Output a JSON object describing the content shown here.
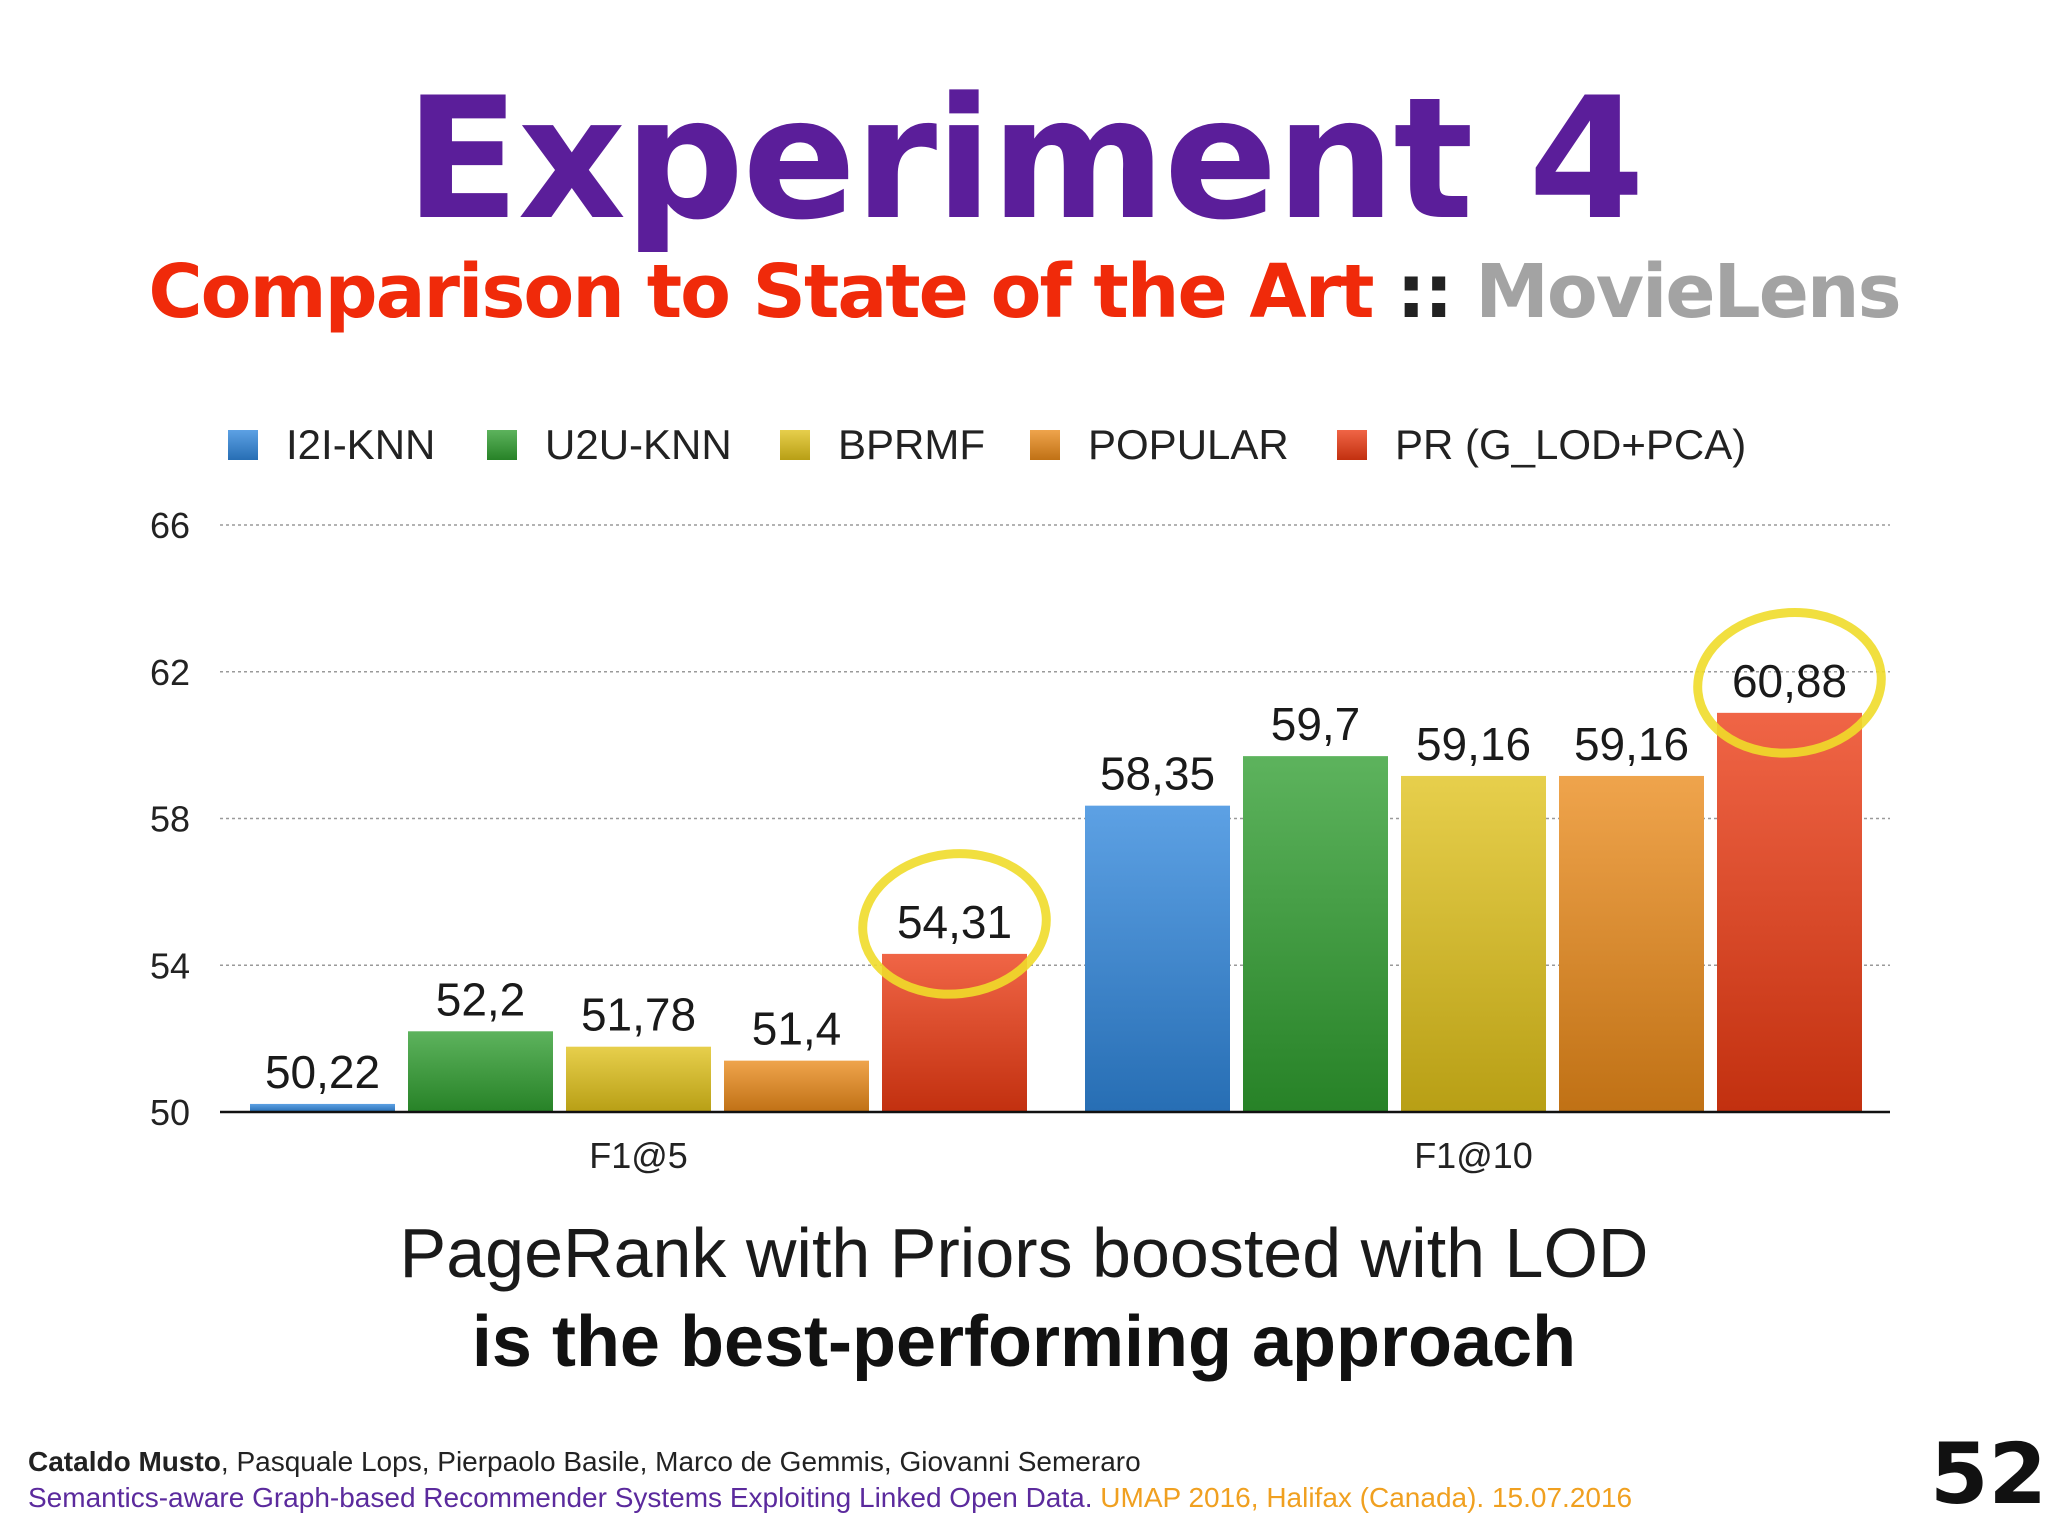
{
  "slide": {
    "title": "Experiment 4",
    "subtitle_main": "Comparison to State of the Art",
    "subtitle_sep": "::",
    "subtitle_dataset": "MovieLens",
    "conclusion_line1": "PageRank with Priors boosted with LOD",
    "conclusion_line2": "is the best-performing approach",
    "footer_author_bold": "Cataldo Musto",
    "footer_authors_rest": ", Pasquale Lops, Pierpaolo Basile, Marco de Gemmis, Giovanni Semeraro",
    "footer_paper": "Semantics-aware Graph-based Recommender Systems Exploiting Linked Open Data.",
    "footer_conf": "UMAP 2016, Halifax (Canada). 15.07.2016",
    "page_number": "52"
  },
  "chart_data": {
    "type": "bar",
    "categories": [
      "F1@5",
      "F1@10"
    ],
    "series": [
      {
        "name": "I2I-KNN",
        "color": "#2f86dc",
        "values": [
          50.22,
          58.35
        ],
        "labels": [
          "50,22",
          "58,35"
        ]
      },
      {
        "name": "U2U-KNN",
        "color": "#2f9e2f",
        "values": [
          52.2,
          59.7
        ],
        "labels": [
          "52,2",
          "59,7"
        ]
      },
      {
        "name": "BPRMF",
        "color": "#e0c21a",
        "values": [
          51.78,
          59.16
        ],
        "labels": [
          "51,78",
          "59,16"
        ]
      },
      {
        "name": "POPULAR",
        "color": "#ea8a1a",
        "values": [
          51.4,
          59.16
        ],
        "labels": [
          "51,4",
          "59,16"
        ]
      },
      {
        "name": "PR (G_LOD+PCA)",
        "color": "#ec3a12",
        "values": [
          54.31,
          60.88
        ],
        "labels": [
          "54,31",
          "60,88"
        ]
      }
    ],
    "ylim": [
      50,
      66
    ],
    "yticks": [
      50,
      54,
      58,
      62,
      66
    ],
    "grid": true,
    "legend": "top",
    "highlighted": [
      {
        "category": "F1@5",
        "series": "PR (G_LOD+PCA)"
      },
      {
        "category": "F1@10",
        "series": "PR (G_LOD+PCA)"
      }
    ]
  }
}
